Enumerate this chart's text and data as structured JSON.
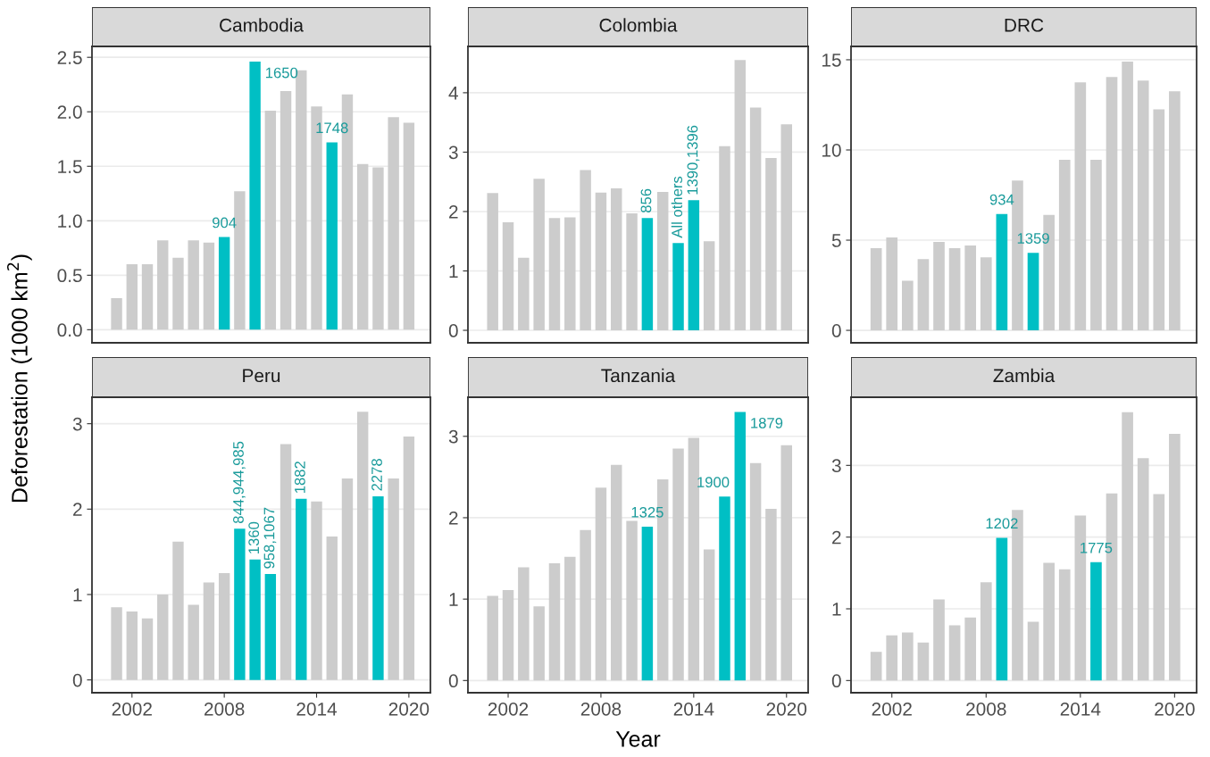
{
  "chart_data": [
    {
      "type": "bar",
      "title": "Cambodia",
      "ylabel": "Deforestation (1000 km$^{2}$)",
      "x": [
        2001,
        2002,
        2003,
        2004,
        2005,
        2006,
        2007,
        2008,
        2009,
        2010,
        2011,
        2012,
        2013,
        2014,
        2015,
        2016,
        2017,
        2018,
        2019,
        2020
      ],
      "values": [
        0.29,
        0.6,
        0.6,
        0.82,
        0.66,
        0.82,
        0.8,
        0.85,
        1.27,
        2.46,
        2.01,
        2.19,
        2.38,
        2.05,
        1.72,
        2.16,
        1.52,
        1.49,
        1.95,
        1.9
      ],
      "colors": [
        "#cccccc",
        "#cccccc",
        "#cccccc",
        "#cccccc",
        "#cccccc",
        "#cccccc",
        "#cccccc",
        "#00bfc4",
        "#cccccc",
        "#00bfc4",
        "#cccccc",
        "#cccccc",
        "#cccccc",
        "#cccccc",
        "#00bfc4",
        "#cccccc",
        "#cccccc",
        "#cccccc",
        "#cccccc",
        "#cccccc"
      ],
      "annotations": [
        {
          "text": "904",
          "x": 2008,
          "y": 0.85
        },
        {
          "text": "1650",
          "x": 2010,
          "y": 2.46
        },
        {
          "text": "1748",
          "x": 2015,
          "y": 1.72
        }
      ],
      "xlim": [
        1999.4,
        2021.4
      ],
      "xticks": [
        2002,
        2008,
        2014,
        2020
      ],
      "ylim": [
        -0.12,
        2.6
      ],
      "yticks": [
        {
          "value": 0,
          "label": "0.0"
        },
        {
          "value": 0.5,
          "label": "0.5"
        },
        {
          "value": 1,
          "label": "1.0"
        },
        {
          "value": 1.5,
          "label": "1.5"
        },
        {
          "value": 2,
          "label": "2.0"
        },
        {
          "value": 2.5,
          "label": "2.5"
        }
      ],
      "grid": "y",
      "tick_labels": "y"
    },
    {
      "type": "bar",
      "title": "Colombia",
      "x": [
        2001,
        2002,
        2003,
        2004,
        2005,
        2006,
        2007,
        2008,
        2009,
        2010,
        2011,
        2012,
        2013,
        2014,
        2015,
        2016,
        2017,
        2018,
        2019,
        2020
      ],
      "values": [
        2.31,
        1.82,
        1.22,
        2.55,
        1.89,
        1.9,
        2.7,
        2.32,
        2.39,
        1.97,
        1.89,
        2.33,
        1.47,
        2.19,
        1.5,
        3.1,
        4.55,
        3.75,
        2.9,
        3.47
      ],
      "colors": [
        "#cccccc",
        "#cccccc",
        "#cccccc",
        "#cccccc",
        "#cccccc",
        "#cccccc",
        "#cccccc",
        "#cccccc",
        "#cccccc",
        "#cccccc",
        "#00bfc4",
        "#cccccc",
        "#00bfc4",
        "#00bfc4",
        "#cccccc",
        "#cccccc",
        "#cccccc",
        "#cccccc",
        "#cccccc",
        "#cccccc"
      ],
      "annotations": [
        {
          "text": "856",
          "x": 2011,
          "y": 1.89
        },
        {
          "text": "All others",
          "x": 2013,
          "y": 1.47
        },
        {
          "text": "1390,1396",
          "x": 2014,
          "y": 2.19
        }
      ],
      "xlim": [
        1999.4,
        2021.4
      ],
      "xticks": [
        2002,
        2008,
        2014,
        2020
      ],
      "ylim": [
        -0.21,
        4.78
      ],
      "yticks": [
        0,
        1,
        2,
        3,
        4
      ],
      "grid": "y",
      "tick_labels": "y"
    },
    {
      "type": "bar",
      "title": "DRC",
      "x": [
        2001,
        2002,
        2003,
        2004,
        2005,
        2006,
        2007,
        2008,
        2009,
        2010,
        2011,
        2012,
        2013,
        2014,
        2015,
        2016,
        2017,
        2018,
        2019,
        2020
      ],
      "values": [
        4.55,
        5.15,
        2.75,
        3.95,
        4.9,
        4.55,
        4.7,
        4.05,
        6.45,
        8.3,
        4.3,
        6.4,
        9.45,
        13.75,
        9.45,
        14.05,
        14.9,
        13.85,
        12.25,
        13.25
      ],
      "colors": [
        "#cccccc",
        "#cccccc",
        "#cccccc",
        "#cccccc",
        "#cccccc",
        "#cccccc",
        "#cccccc",
        "#cccccc",
        "#00bfc4",
        "#cccccc",
        "#00bfc4",
        "#cccccc",
        "#cccccc",
        "#cccccc",
        "#cccccc",
        "#cccccc",
        "#cccccc",
        "#cccccc",
        "#cccccc",
        "#cccccc"
      ],
      "annotations": [
        {
          "text": "934",
          "x": 2009,
          "y": 6.45
        },
        {
          "text": "1359",
          "x": 2011,
          "y": 4.3
        }
      ],
      "xlim": [
        1999.4,
        2021.4
      ],
      "xticks": [
        2002,
        2008,
        2014,
        2020
      ],
      "ylim": [
        -0.69,
        15.74
      ],
      "yticks": [
        0,
        5,
        10,
        15
      ],
      "grid": "y",
      "tick_labels": "y"
    },
    {
      "type": "bar",
      "title": "Peru",
      "x": [
        2001,
        2002,
        2003,
        2004,
        2005,
        2006,
        2007,
        2008,
        2009,
        2010,
        2011,
        2012,
        2013,
        2014,
        2015,
        2016,
        2017,
        2018,
        2019,
        2020
      ],
      "values": [
        0.85,
        0.8,
        0.72,
        1.0,
        1.62,
        0.88,
        1.14,
        1.25,
        1.77,
        1.41,
        1.24,
        2.76,
        2.12,
        2.09,
        1.68,
        2.36,
        3.14,
        2.15,
        2.36,
        2.85
      ],
      "colors": [
        "#cccccc",
        "#cccccc",
        "#cccccc",
        "#cccccc",
        "#cccccc",
        "#cccccc",
        "#cccccc",
        "#cccccc",
        "#00bfc4",
        "#00bfc4",
        "#00bfc4",
        "#cccccc",
        "#00bfc4",
        "#cccccc",
        "#cccccc",
        "#cccccc",
        "#cccccc",
        "#00bfc4",
        "#cccccc",
        "#cccccc"
      ],
      "annotations": [
        {
          "text": "844,944,985",
          "x": 2009,
          "y": 1.77
        },
        {
          "text": "1360",
          "x": 2010,
          "y": 1.41
        },
        {
          "text": "958,1067",
          "x": 2011,
          "y": 1.24
        },
        {
          "text": "1882",
          "x": 2013,
          "y": 2.12
        },
        {
          "text": "2278",
          "x": 2018,
          "y": 2.15
        }
      ],
      "xlim": [
        1999.4,
        2021.4
      ],
      "xticks": [
        2002,
        2008,
        2014,
        2020
      ],
      "ylim": [
        -0.15,
        3.31
      ],
      "yticks": [
        0,
        1,
        2,
        3
      ],
      "grid": "y"
    },
    {
      "type": "bar",
      "title": "Tanzania",
      "xlabel": "Year",
      "x": [
        2001,
        2002,
        2003,
        2004,
        2005,
        2006,
        2007,
        2008,
        2009,
        2010,
        2011,
        2012,
        2013,
        2014,
        2015,
        2016,
        2017,
        2018,
        2019,
        2020
      ],
      "values": [
        1.04,
        1.11,
        1.39,
        0.91,
        1.44,
        1.52,
        1.85,
        2.37,
        2.65,
        1.96,
        1.89,
        2.47,
        2.85,
        2.98,
        1.61,
        2.26,
        3.3,
        2.67,
        2.11,
        2.89
      ],
      "colors": [
        "#cccccc",
        "#cccccc",
        "#cccccc",
        "#cccccc",
        "#cccccc",
        "#cccccc",
        "#cccccc",
        "#cccccc",
        "#cccccc",
        "#cccccc",
        "#00bfc4",
        "#cccccc",
        "#cccccc",
        "#cccccc",
        "#cccccc",
        "#00bfc4",
        "#00bfc4",
        "#cccccc",
        "#cccccc",
        "#cccccc"
      ],
      "annotations": [
        {
          "text": "1325",
          "x": 2011,
          "y": 1.89
        },
        {
          "text": "1900",
          "x": 2016,
          "y": 2.26
        },
        {
          "text": "1879",
          "x": 2017,
          "y": 3.3
        }
      ],
      "xlim": [
        1999.4,
        2021.4
      ],
      "xticks": [
        2002,
        2008,
        2014,
        2020
      ],
      "ylim": [
        -0.15,
        3.48
      ],
      "yticks": [
        0,
        1,
        2,
        3
      ],
      "grid": "y"
    },
    {
      "type": "bar",
      "title": "Zambia",
      "x": [
        2001,
        2002,
        2003,
        2004,
        2005,
        2006,
        2007,
        2008,
        2009,
        2010,
        2011,
        2012,
        2013,
        2014,
        2015,
        2016,
        2017,
        2018,
        2019,
        2020
      ],
      "values": [
        0.4,
        0.63,
        0.67,
        0.53,
        1.13,
        0.77,
        0.88,
        1.37,
        1.99,
        2.38,
        0.82,
        1.64,
        1.55,
        2.3,
        1.65,
        2.61,
        3.74,
        3.1,
        2.6,
        3.44
      ],
      "colors": [
        "#cccccc",
        "#cccccc",
        "#cccccc",
        "#cccccc",
        "#cccccc",
        "#cccccc",
        "#cccccc",
        "#cccccc",
        "#00bfc4",
        "#cccccc",
        "#cccccc",
        "#cccccc",
        "#cccccc",
        "#cccccc",
        "#00bfc4",
        "#cccccc",
        "#cccccc",
        "#cccccc",
        "#cccccc",
        "#cccccc"
      ],
      "annotations": [
        {
          "text": "1202",
          "x": 2009,
          "y": 1.99
        },
        {
          "text": "1775",
          "x": 2015,
          "y": 1.65
        }
      ],
      "xlim": [
        1999.4,
        2021.4
      ],
      "xticks": [
        2002,
        2008,
        2014,
        2020
      ],
      "ylim": [
        -0.17,
        3.95
      ],
      "yticks": [
        0,
        1,
        2,
        3
      ],
      "grid": "y"
    }
  ]
}
